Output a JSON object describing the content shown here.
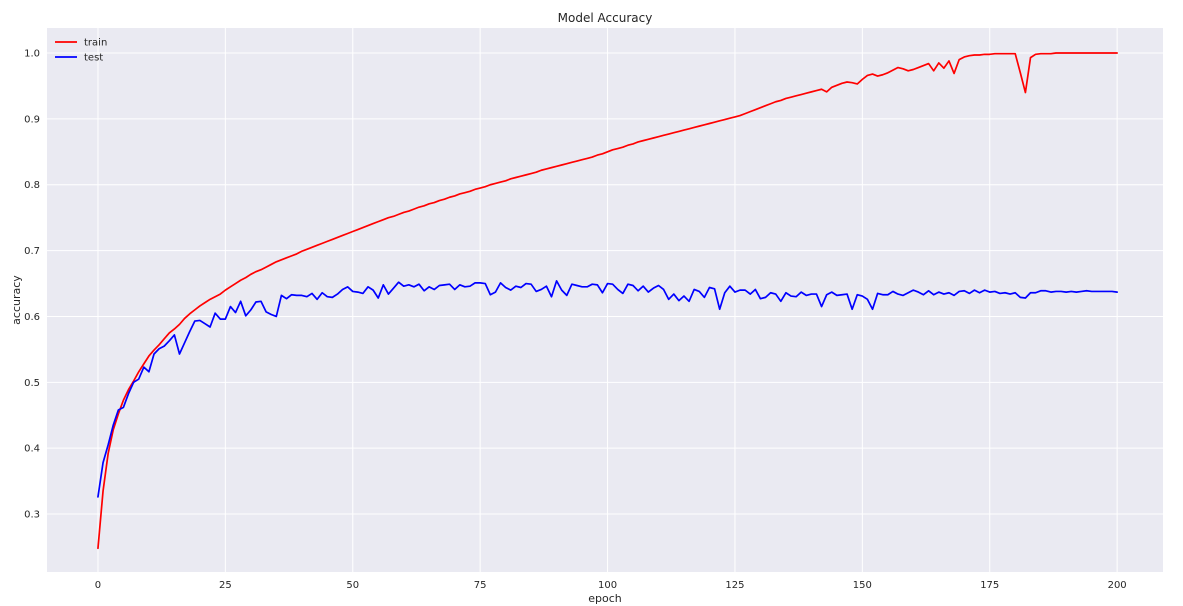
{
  "chart_data": {
    "type": "line",
    "title": "Model Accuracy",
    "xlabel": "epoch",
    "ylabel": "accuracy",
    "xlim": [
      -10,
      209
    ],
    "ylim": [
      0.212,
      1.038
    ],
    "xticks": [
      0,
      25,
      50,
      75,
      100,
      125,
      150,
      175,
      200
    ],
    "yticks": [
      0.3,
      0.4,
      0.5,
      0.6,
      0.7,
      0.8,
      0.9,
      1.0
    ],
    "ytick_labels": [
      "0.3",
      "0.4",
      "0.5",
      "0.6",
      "0.7",
      "0.8",
      "0.9",
      "1.0"
    ],
    "grid": true,
    "legend_position": "top-left",
    "x_start": 0,
    "x_step": 1,
    "series": [
      {
        "name": "train",
        "color": "#ff0000",
        "values": [
          0.248,
          0.335,
          0.392,
          0.428,
          0.452,
          0.473,
          0.489,
          0.502,
          0.516,
          0.528,
          0.54,
          0.549,
          0.557,
          0.566,
          0.575,
          0.581,
          0.588,
          0.597,
          0.604,
          0.61,
          0.616,
          0.621,
          0.626,
          0.63,
          0.634,
          0.64,
          0.645,
          0.65,
          0.655,
          0.659,
          0.664,
          0.668,
          0.671,
          0.675,
          0.679,
          0.683,
          0.686,
          0.689,
          0.692,
          0.695,
          0.699,
          0.702,
          0.705,
          0.708,
          0.711,
          0.714,
          0.717,
          0.72,
          0.723,
          0.726,
          0.729,
          0.732,
          0.735,
          0.738,
          0.741,
          0.744,
          0.747,
          0.75,
          0.752,
          0.755,
          0.758,
          0.76,
          0.763,
          0.766,
          0.768,
          0.771,
          0.773,
          0.776,
          0.778,
          0.781,
          0.783,
          0.786,
          0.788,
          0.79,
          0.793,
          0.795,
          0.797,
          0.8,
          0.802,
          0.804,
          0.806,
          0.809,
          0.811,
          0.813,
          0.815,
          0.817,
          0.819,
          0.822,
          0.824,
          0.826,
          0.828,
          0.83,
          0.832,
          0.834,
          0.836,
          0.838,
          0.84,
          0.842,
          0.845,
          0.847,
          0.85,
          0.853,
          0.855,
          0.857,
          0.86,
          0.862,
          0.865,
          0.867,
          0.869,
          0.871,
          0.873,
          0.875,
          0.877,
          0.879,
          0.881,
          0.883,
          0.885,
          0.887,
          0.889,
          0.891,
          0.893,
          0.895,
          0.897,
          0.899,
          0.901,
          0.903,
          0.905,
          0.908,
          0.911,
          0.914,
          0.917,
          0.92,
          0.923,
          0.926,
          0.928,
          0.931,
          0.933,
          0.935,
          0.937,
          0.939,
          0.941,
          0.943,
          0.945,
          0.941,
          0.948,
          0.951,
          0.954,
          0.956,
          0.955,
          0.953,
          0.96,
          0.966,
          0.968,
          0.965,
          0.967,
          0.97,
          0.974,
          0.978,
          0.976,
          0.973,
          0.975,
          0.978,
          0.981,
          0.984,
          0.973,
          0.985,
          0.977,
          0.988,
          0.969,
          0.99,
          0.994,
          0.996,
          0.997,
          0.997,
          0.998,
          0.998,
          0.999,
          0.999,
          0.999,
          0.999,
          0.999,
          0.97,
          0.94,
          0.993,
          0.998,
          0.999,
          0.999,
          0.999,
          1.0,
          1.0,
          1.0,
          1.0,
          1.0,
          1.0,
          1.0,
          1.0,
          1.0,
          1.0,
          1.0,
          1.0,
          1.0
        ]
      },
      {
        "name": "test",
        "color": "#0000ff",
        "values": [
          0.326,
          0.378,
          0.405,
          0.435,
          0.458,
          0.462,
          0.483,
          0.5,
          0.505,
          0.523,
          0.516,
          0.543,
          0.551,
          0.555,
          0.563,
          0.572,
          0.543,
          0.56,
          0.577,
          0.593,
          0.594,
          0.589,
          0.584,
          0.605,
          0.596,
          0.596,
          0.615,
          0.606,
          0.623,
          0.601,
          0.61,
          0.622,
          0.623,
          0.607,
          0.603,
          0.6,
          0.632,
          0.627,
          0.633,
          0.632,
          0.632,
          0.63,
          0.635,
          0.626,
          0.636,
          0.63,
          0.629,
          0.634,
          0.641,
          0.645,
          0.638,
          0.637,
          0.635,
          0.645,
          0.64,
          0.628,
          0.648,
          0.634,
          0.643,
          0.652,
          0.646,
          0.648,
          0.645,
          0.649,
          0.639,
          0.645,
          0.641,
          0.647,
          0.648,
          0.649,
          0.641,
          0.648,
          0.645,
          0.646,
          0.651,
          0.651,
          0.65,
          0.633,
          0.637,
          0.651,
          0.644,
          0.64,
          0.646,
          0.644,
          0.65,
          0.649,
          0.638,
          0.641,
          0.646,
          0.63,
          0.654,
          0.64,
          0.632,
          0.649,
          0.647,
          0.645,
          0.645,
          0.649,
          0.648,
          0.636,
          0.65,
          0.649,
          0.641,
          0.635,
          0.649,
          0.647,
          0.639,
          0.646,
          0.637,
          0.643,
          0.647,
          0.641,
          0.626,
          0.634,
          0.624,
          0.631,
          0.623,
          0.641,
          0.638,
          0.629,
          0.644,
          0.642,
          0.611,
          0.636,
          0.646,
          0.637,
          0.64,
          0.64,
          0.634,
          0.641,
          0.627,
          0.629,
          0.636,
          0.634,
          0.623,
          0.636,
          0.631,
          0.63,
          0.637,
          0.632,
          0.634,
          0.634,
          0.615,
          0.633,
          0.637,
          0.632,
          0.633,
          0.634,
          0.611,
          0.633,
          0.631,
          0.626,
          0.611,
          0.635,
          0.633,
          0.633,
          0.638,
          0.634,
          0.632,
          0.636,
          0.64,
          0.637,
          0.633,
          0.639,
          0.633,
          0.637,
          0.634,
          0.636,
          0.632,
          0.638,
          0.639,
          0.635,
          0.64,
          0.636,
          0.64,
          0.637,
          0.638,
          0.635,
          0.636,
          0.634,
          0.636,
          0.629,
          0.628,
          0.636,
          0.636,
          0.639,
          0.639,
          0.637,
          0.638,
          0.638,
          0.637,
          0.638,
          0.637,
          0.638,
          0.639,
          0.638,
          0.638,
          0.638,
          0.638,
          0.638,
          0.637
        ]
      }
    ]
  }
}
